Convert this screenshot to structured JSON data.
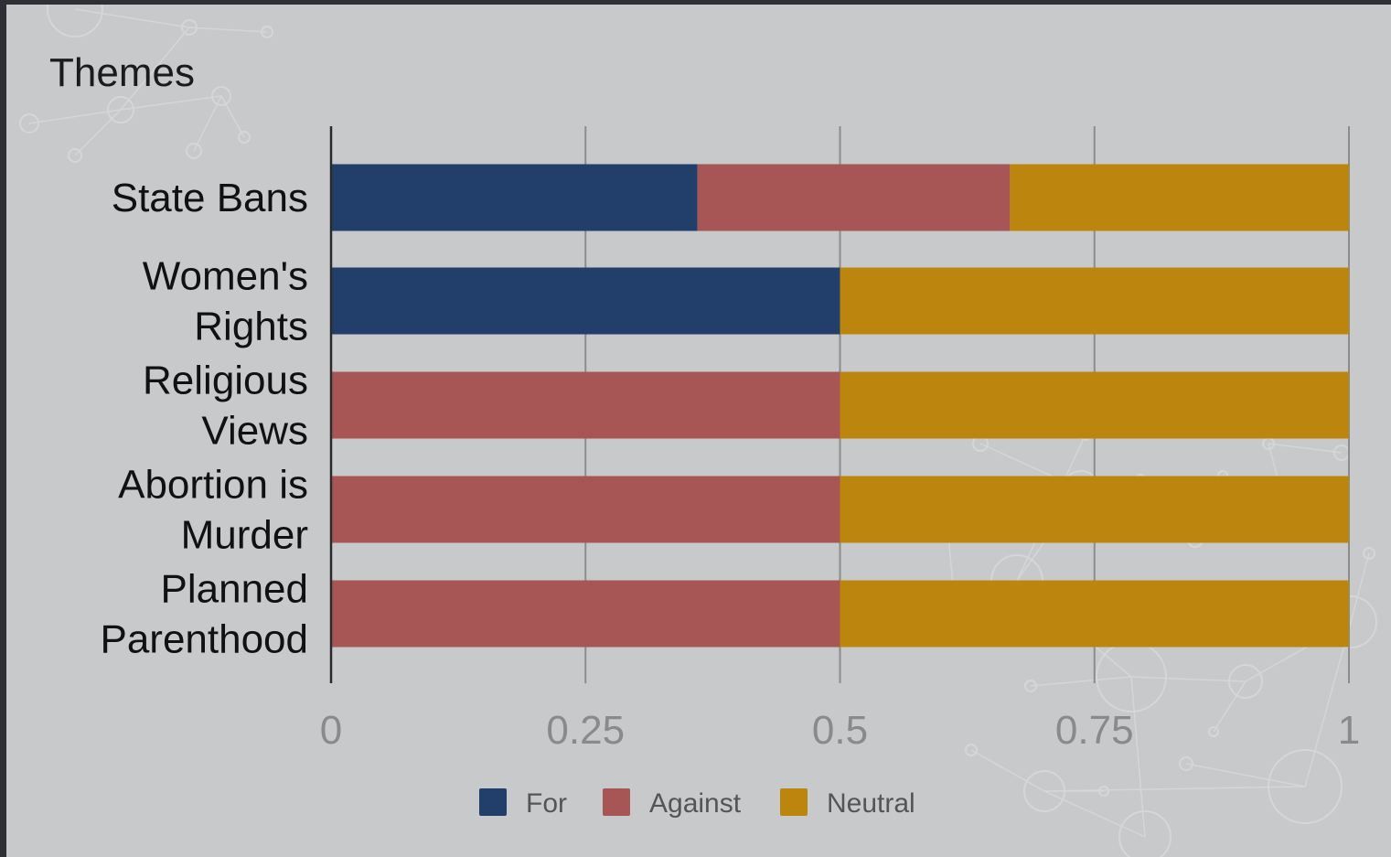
{
  "chart_data": {
    "type": "bar",
    "orientation": "horizontal",
    "stacked": true,
    "title": "Themes",
    "categories": [
      [
        "State Bans"
      ],
      [
        "Women's",
        "Rights"
      ],
      [
        "Religious",
        "Views"
      ],
      [
        "Abortion is",
        "Murder"
      ],
      [
        "Planned",
        "Parenthood"
      ]
    ],
    "series": [
      {
        "name": "For",
        "color": "#223f6b",
        "values": [
          0.36,
          0.5,
          0,
          0,
          0
        ]
      },
      {
        "name": "Against",
        "color": "#a85555",
        "values": [
          0.307,
          0,
          0.5,
          0.5,
          0.5
        ]
      },
      {
        "name": "Neutral",
        "color": "#bc860e",
        "values": [
          0.333,
          0.5,
          0.5,
          0.5,
          0.5
        ]
      }
    ],
    "xlim": [
      0,
      1
    ],
    "xticks": [
      "0",
      "0.25",
      "0.5",
      "0.75",
      "1"
    ],
    "xlabel": "",
    "ylabel": "",
    "grid": "vertical",
    "legend": "bottom"
  }
}
